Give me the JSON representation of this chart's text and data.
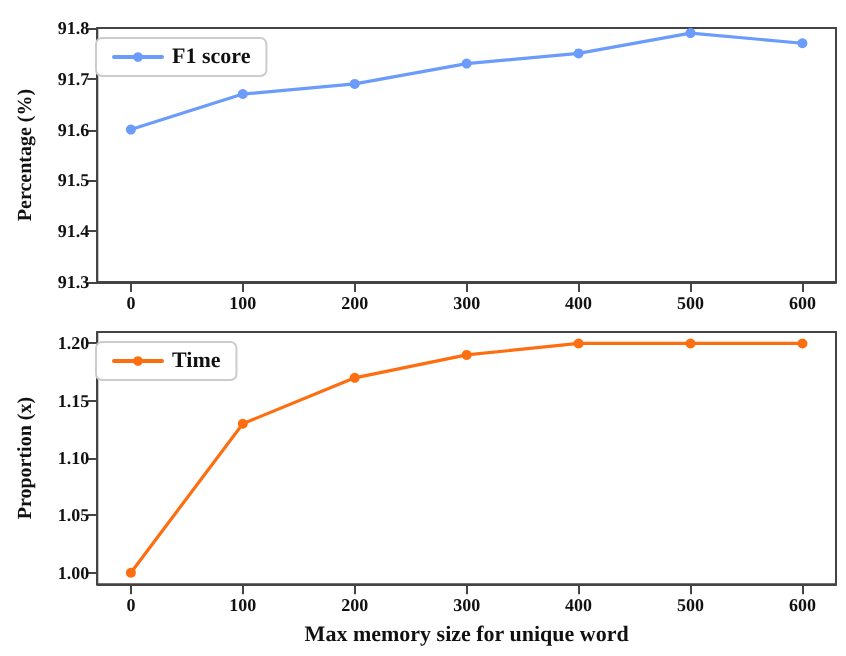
{
  "chart_data": [
    {
      "type": "line",
      "ylabel": "Percentage (%)",
      "x": [
        0,
        100,
        200,
        300,
        400,
        500,
        600
      ],
      "series": [
        {
          "name": "F1 score",
          "color": "#6b9bfb",
          "values": [
            91.6,
            91.67,
            91.69,
            91.73,
            91.75,
            91.79,
            91.77
          ]
        }
      ],
      "xlim": [
        -30,
        630
      ],
      "xticks": [
        0,
        100,
        200,
        300,
        400,
        500,
        600
      ],
      "ylim": [
        91.3,
        91.8
      ],
      "yticks": [
        91.3,
        91.4,
        91.5,
        91.6,
        91.7,
        91.8
      ],
      "grid": false,
      "legend": "top left",
      "marker": "circle",
      "line_style": "solid"
    },
    {
      "type": "line",
      "xlabel": "Max memory size for unique word",
      "ylabel": "Proportion (x)",
      "x": [
        0,
        100,
        200,
        300,
        400,
        500,
        600
      ],
      "series": [
        {
          "name": "Time",
          "color": "#fd6e10",
          "values": [
            1.0,
            1.13,
            1.17,
            1.19,
            1.2,
            1.2,
            1.2
          ]
        }
      ],
      "xlim": [
        -30,
        630
      ],
      "xticks": [
        0,
        100,
        200,
        300,
        400,
        500,
        600
      ],
      "ylim": [
        0.99,
        1.21
      ],
      "yticks": [
        {
          "value": 1.0,
          "label": "1.00"
        },
        {
          "value": 1.05,
          "label": "1.05"
        },
        {
          "value": 1.1,
          "label": "1.10"
        },
        {
          "value": 1.15,
          "label": "1.15"
        },
        {
          "value": 1.2,
          "label": "1.20"
        }
      ],
      "grid": false,
      "legend": "top left",
      "marker": "circle",
      "line_style": "solid"
    }
  ]
}
